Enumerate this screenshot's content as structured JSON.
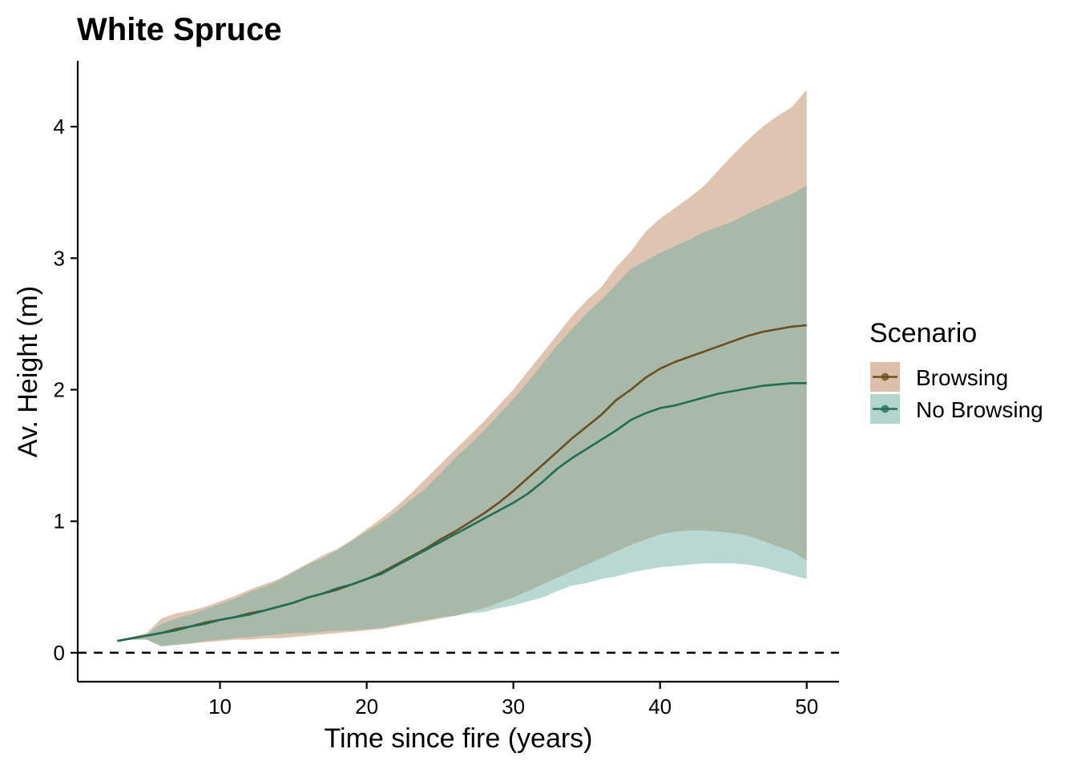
{
  "chart_data": {
    "type": "area",
    "title": "White Spruce",
    "xlabel": "Time since fire (years)",
    "ylabel": "Av. Height (m)",
    "xlim": [
      0.3,
      52.2
    ],
    "ylim": [
      -0.22,
      4.5
    ],
    "xticks": [
      10,
      20,
      30,
      40,
      50
    ],
    "yticks": [
      0,
      1,
      2,
      3,
      4
    ],
    "reference_line": {
      "y": 0,
      "style": "dashed"
    },
    "grid": false,
    "legend": {
      "title": "Scenario",
      "position": "right"
    },
    "x": [
      3,
      4,
      5,
      6,
      7,
      8,
      9,
      10,
      11,
      12,
      13,
      14,
      15,
      16,
      17,
      18,
      19,
      20,
      21,
      22,
      23,
      24,
      25,
      26,
      27,
      28,
      29,
      30,
      31,
      32,
      33,
      34,
      35,
      36,
      37,
      38,
      39,
      40,
      41,
      42,
      43,
      44,
      45,
      46,
      47,
      48,
      49,
      50
    ],
    "series": [
      {
        "name": "Browsing",
        "line_color": "#6B4E1F",
        "fill_color": "#C8997A",
        "fill_opacity": 0.58,
        "mean": [
          0.09,
          0.11,
          0.13,
          0.15,
          0.18,
          0.2,
          0.23,
          0.25,
          0.27,
          0.3,
          0.32,
          0.35,
          0.38,
          0.42,
          0.45,
          0.48,
          0.52,
          0.56,
          0.61,
          0.67,
          0.73,
          0.79,
          0.86,
          0.92,
          0.99,
          1.06,
          1.14,
          1.23,
          1.33,
          1.43,
          1.53,
          1.63,
          1.72,
          1.81,
          1.92,
          2.0,
          2.09,
          2.16,
          2.21,
          2.25,
          2.29,
          2.33,
          2.37,
          2.41,
          2.44,
          2.46,
          2.48,
          2.49
        ],
        "upper": [
          0.09,
          0.12,
          0.15,
          0.26,
          0.3,
          0.32,
          0.35,
          0.39,
          0.43,
          0.48,
          0.52,
          0.56,
          0.62,
          0.68,
          0.74,
          0.79,
          0.86,
          0.94,
          1.02,
          1.11,
          1.21,
          1.32,
          1.43,
          1.54,
          1.65,
          1.76,
          1.88,
          2.0,
          2.14,
          2.28,
          2.42,
          2.56,
          2.68,
          2.78,
          2.93,
          3.05,
          3.2,
          3.3,
          3.38,
          3.46,
          3.55,
          3.67,
          3.79,
          3.9,
          4.0,
          4.08,
          4.15,
          4.28
        ],
        "lower": [
          0.09,
          0.1,
          0.1,
          0.05,
          0.06,
          0.07,
          0.08,
          0.09,
          0.1,
          0.1,
          0.11,
          0.11,
          0.12,
          0.13,
          0.14,
          0.15,
          0.16,
          0.17,
          0.18,
          0.2,
          0.22,
          0.24,
          0.26,
          0.28,
          0.31,
          0.34,
          0.38,
          0.42,
          0.47,
          0.52,
          0.57,
          0.62,
          0.67,
          0.72,
          0.77,
          0.82,
          0.86,
          0.9,
          0.92,
          0.93,
          0.93,
          0.92,
          0.91,
          0.89,
          0.85,
          0.81,
          0.77,
          0.7
        ]
      },
      {
        "name": "No Browsing",
        "line_color": "#1E6E57",
        "fill_color": "#6AADA0",
        "fill_opacity": 0.47,
        "mean": [
          0.09,
          0.11,
          0.13,
          0.15,
          0.17,
          0.2,
          0.22,
          0.25,
          0.27,
          0.29,
          0.32,
          0.35,
          0.38,
          0.42,
          0.45,
          0.49,
          0.52,
          0.56,
          0.6,
          0.66,
          0.72,
          0.78,
          0.84,
          0.9,
          0.96,
          1.02,
          1.08,
          1.14,
          1.21,
          1.3,
          1.4,
          1.48,
          1.55,
          1.62,
          1.69,
          1.77,
          1.82,
          1.86,
          1.88,
          1.91,
          1.94,
          1.97,
          1.99,
          2.01,
          2.03,
          2.04,
          2.05,
          2.05
        ],
        "upper": [
          0.09,
          0.12,
          0.14,
          0.22,
          0.26,
          0.29,
          0.33,
          0.37,
          0.41,
          0.46,
          0.5,
          0.55,
          0.61,
          0.67,
          0.72,
          0.78,
          0.85,
          0.92,
          0.99,
          1.07,
          1.16,
          1.25,
          1.36,
          1.48,
          1.58,
          1.69,
          1.81,
          1.93,
          2.06,
          2.2,
          2.34,
          2.46,
          2.58,
          2.68,
          2.8,
          2.92,
          2.98,
          3.04,
          3.09,
          3.14,
          3.2,
          3.24,
          3.28,
          3.34,
          3.39,
          3.44,
          3.49,
          3.55
        ],
        "lower": [
          0.09,
          0.1,
          0.1,
          0.05,
          0.06,
          0.07,
          0.09,
          0.1,
          0.11,
          0.12,
          0.13,
          0.14,
          0.15,
          0.15,
          0.16,
          0.17,
          0.17,
          0.18,
          0.19,
          0.21,
          0.23,
          0.25,
          0.27,
          0.28,
          0.3,
          0.31,
          0.34,
          0.36,
          0.39,
          0.42,
          0.47,
          0.51,
          0.53,
          0.56,
          0.58,
          0.61,
          0.63,
          0.65,
          0.66,
          0.67,
          0.68,
          0.68,
          0.68,
          0.67,
          0.65,
          0.62,
          0.59,
          0.56
        ]
      }
    ]
  }
}
